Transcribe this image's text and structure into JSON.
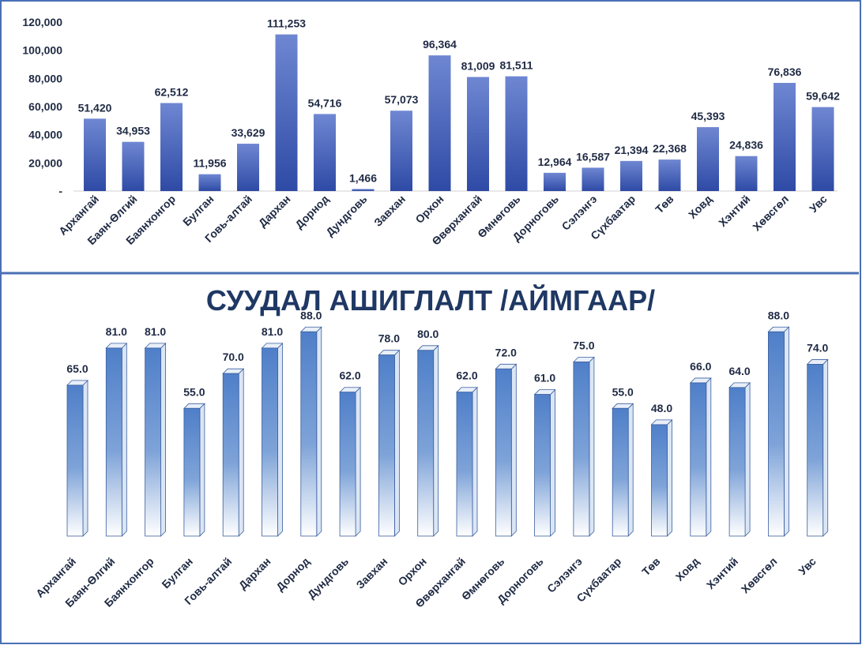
{
  "chart_data": [
    {
      "type": "bar",
      "title": "",
      "xlabel": "",
      "ylabel": "",
      "ylim": [
        0,
        120000
      ],
      "yticks": [
        "-",
        "20,000",
        "40,000",
        "60,000",
        "80,000",
        "100,000",
        "120,000"
      ],
      "categories": [
        "Архангай",
        "Баян-Өлгий",
        "Баянхонгор",
        "Булган",
        "Говь-алтай",
        "Дархан",
        "Дорнод",
        "Дундговь",
        "Завхан",
        "Орхон",
        "Өвөрхангай",
        "Өмнөговь",
        "Дорноговь",
        "Сэлэнгэ",
        "Сүхбаатар",
        "Төв",
        "Ховд",
        "Хэнтий",
        "Хөвсгөл",
        "Увс"
      ],
      "values": [
        51420,
        34953,
        62512,
        11956,
        33629,
        111253,
        54716,
        1466,
        57073,
        96364,
        81009,
        81511,
        12964,
        16587,
        21394,
        22368,
        45393,
        24836,
        76836,
        59642
      ],
      "labels": [
        "51,420",
        "34,953",
        "62,512",
        "11,956",
        "33,629",
        "111,253",
        "54,716",
        "1,466",
        "57,073",
        "96,364",
        "81,009",
        "81,511",
        "12,964",
        "16,587",
        "21,394",
        "22,368",
        "45,393",
        "24,836",
        "76,836",
        "59,642"
      ],
      "colors": {
        "bar_top": "#6f87d2",
        "bar_bottom": "#2e4aa5"
      }
    },
    {
      "type": "bar",
      "title": "СУУДАЛ АШИГЛАЛТ /АЙМГААР/",
      "xlabel": "",
      "ylabel": "",
      "ylim": [
        0,
        100
      ],
      "categories": [
        "Архангай",
        "Баян-Өлгий",
        "Баянхонгор",
        "Булган",
        "Говь-алтай",
        "Дархан",
        "Дорнод",
        "Дундговь",
        "Завхан",
        "Орхон",
        "Өвөрхангай",
        "Өмнөговь",
        "Дорноговь",
        "Сэлэнгэ",
        "Сүхбаатар",
        "Төв",
        "Ховд",
        "Хэнтий",
        "Хөвсгөл",
        "Увс"
      ],
      "values": [
        65.0,
        81.0,
        81.0,
        55.0,
        70.0,
        81.0,
        88.0,
        62.0,
        78.0,
        80.0,
        62.0,
        72.0,
        61.0,
        75.0,
        55.0,
        48.0,
        66.0,
        64.0,
        88.0,
        74.0
      ],
      "labels": [
        "65.0",
        "81.0",
        "81.0",
        "55.0",
        "70.0",
        "81.0",
        "88.0",
        "62.0",
        "78.0",
        "80.0",
        "62.0",
        "72.0",
        "61.0",
        "75.0",
        "55.0",
        "48.0",
        "66.0",
        "64.0",
        "88.0",
        "74.0"
      ],
      "colors": {
        "bar_top": "#4f7fc9",
        "bar_bottom": "#ffffff"
      }
    }
  ]
}
